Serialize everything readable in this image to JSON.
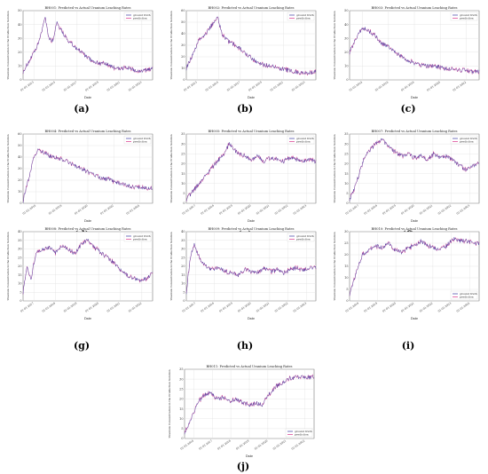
{
  "chart_data": [
    {
      "id": "a",
      "label": "(a)",
      "type": "line",
      "title": "BH001: Predicted vs Actual Uranium Leaching Rates",
      "xlabel": "Date",
      "ylabel": "Uranium Concentration in the Production Solution",
      "legend": [
        "ground truth",
        "prediction"
      ],
      "legend_position": "top-right",
      "grid": true,
      "ylim": [
        0,
        50
      ],
      "yticks": [
        "0",
        "10",
        "20",
        "30",
        "40",
        "50"
      ],
      "xticks": [
        "01-01-2013",
        "01-01-2015",
        "01-01-2017",
        "01-01-2019",
        "01-01-2021",
        "01-01-2023"
      ],
      "profile": [
        [
          0,
          6
        ],
        [
          0.05,
          14
        ],
        [
          0.1,
          22
        ],
        [
          0.14,
          33
        ],
        [
          0.17,
          46
        ],
        [
          0.2,
          30
        ],
        [
          0.23,
          28
        ],
        [
          0.26,
          42
        ],
        [
          0.3,
          35
        ],
        [
          0.35,
          28
        ],
        [
          0.4,
          24
        ],
        [
          0.45,
          20
        ],
        [
          0.5,
          16
        ],
        [
          0.55,
          13
        ],
        [
          0.6,
          12
        ],
        [
          0.65,
          11
        ],
        [
          0.7,
          9
        ],
        [
          0.75,
          8
        ],
        [
          0.8,
          9
        ],
        [
          0.85,
          7
        ],
        [
          0.9,
          6
        ],
        [
          0.95,
          7
        ],
        [
          1,
          8
        ]
      ]
    },
    {
      "id": "b",
      "label": "(b)",
      "type": "line",
      "title": "BH002: Predicted vs Actual Uranium Leaching Rates",
      "xlabel": "Date",
      "ylabel": "Uranium Concentration in the Production Solution",
      "legend": [
        "ground truth",
        "prediction"
      ],
      "legend_position": "top-right",
      "grid": true,
      "ylim": [
        0,
        60
      ],
      "yticks": [
        "0",
        "10",
        "20",
        "30",
        "40",
        "50",
        "60"
      ],
      "xticks": [
        "01-01-2013",
        "01-01-2015",
        "01-01-2017",
        "01-01-2019",
        "01-01-2021",
        "01-01-2023"
      ],
      "profile": [
        [
          0,
          10
        ],
        [
          0.05,
          22
        ],
        [
          0.1,
          35
        ],
        [
          0.15,
          40
        ],
        [
          0.2,
          48
        ],
        [
          0.24,
          55
        ],
        [
          0.28,
          38
        ],
        [
          0.32,
          34
        ],
        [
          0.38,
          30
        ],
        [
          0.45,
          24
        ],
        [
          0.5,
          19
        ],
        [
          0.55,
          15
        ],
        [
          0.6,
          13
        ],
        [
          0.65,
          12
        ],
        [
          0.7,
          11
        ],
        [
          0.75,
          9
        ],
        [
          0.8,
          8
        ],
        [
          0.85,
          7
        ],
        [
          0.9,
          6
        ],
        [
          0.95,
          6
        ],
        [
          1,
          7
        ]
      ]
    },
    {
      "id": "c",
      "label": "(c)",
      "type": "line",
      "title": "BH003: Predicted vs Actual Uranium Leaching Rates",
      "xlabel": "Date",
      "ylabel": "Uranium Concentration in the Production Solution",
      "legend": [
        "ground truth",
        "prediction"
      ],
      "legend_position": "top-right",
      "grid": true,
      "ylim": [
        0,
        50
      ],
      "yticks": [
        "0",
        "10",
        "20",
        "30",
        "40",
        "50"
      ],
      "xticks": [
        "01-01-2014",
        "01-01-2016",
        "01-01-2018",
        "01-01-2020",
        "01-01-2022"
      ],
      "profile": [
        [
          0,
          20
        ],
        [
          0.05,
          30
        ],
        [
          0.1,
          38
        ],
        [
          0.15,
          35
        ],
        [
          0.2,
          32
        ],
        [
          0.25,
          26
        ],
        [
          0.3,
          24
        ],
        [
          0.35,
          20
        ],
        [
          0.4,
          17
        ],
        [
          0.45,
          14
        ],
        [
          0.5,
          12
        ],
        [
          0.55,
          11
        ],
        [
          0.6,
          10
        ],
        [
          0.65,
          10
        ],
        [
          0.7,
          9
        ],
        [
          0.75,
          8
        ],
        [
          0.8,
          8
        ],
        [
          0.85,
          7
        ],
        [
          0.9,
          7
        ],
        [
          0.95,
          6
        ],
        [
          1,
          6
        ]
      ]
    },
    {
      "id": "d",
      "label": "(d)",
      "type": "line",
      "title": "BH004: Predicted vs Actual Uranium Leaching Rates",
      "xlabel": "Date",
      "ylabel": "Uranium Concentration in the Production Solution",
      "legend": [
        "ground truth",
        "prediction"
      ],
      "legend_position": "top-right",
      "grid": true,
      "ylim": [
        0,
        60
      ],
      "yticks": [
        "0",
        "10",
        "20",
        "30",
        "40",
        "50",
        "60"
      ],
      "xticks": [
        "01-01-2016",
        "01-01-2018",
        "01-01-2020",
        "01-01-2022",
        "01-01-2024"
      ],
      "profile": [
        [
          0,
          2
        ],
        [
          0.04,
          20
        ],
        [
          0.08,
          38
        ],
        [
          0.12,
          47
        ],
        [
          0.16,
          44
        ],
        [
          0.22,
          40
        ],
        [
          0.3,
          38
        ],
        [
          0.38,
          34
        ],
        [
          0.45,
          30
        ],
        [
          0.52,
          26
        ],
        [
          0.6,
          22
        ],
        [
          0.68,
          20
        ],
        [
          0.75,
          17
        ],
        [
          0.82,
          15
        ],
        [
          0.88,
          14
        ],
        [
          0.94,
          13
        ],
        [
          1,
          13
        ]
      ]
    },
    {
      "id": "e",
      "label": "(e)",
      "type": "line",
      "title": "BH005: Predicted vs Actual Uranium Leaching Rates",
      "xlabel": "Date",
      "ylabel": "Uranium Concentration in the Production Solution",
      "legend": [
        "ground truth",
        "prediction"
      ],
      "legend_position": "top-right",
      "grid": true,
      "ylim": [
        0,
        35
      ],
      "yticks": [
        "0",
        "5",
        "10",
        "15",
        "20",
        "25",
        "30",
        "35"
      ],
      "xticks": [
        "01-01-2017",
        "01-01-2018",
        "01-01-2019",
        "01-01-2020",
        "01-01-2021",
        "01-01-2022",
        "01-01-2023"
      ],
      "profile": [
        [
          0,
          2
        ],
        [
          0.05,
          6
        ],
        [
          0.1,
          10
        ],
        [
          0.15,
          14
        ],
        [
          0.2,
          18
        ],
        [
          0.25,
          22
        ],
        [
          0.3,
          26
        ],
        [
          0.33,
          30
        ],
        [
          0.36,
          28
        ],
        [
          0.4,
          25
        ],
        [
          0.45,
          24
        ],
        [
          0.5,
          22
        ],
        [
          0.55,
          24
        ],
        [
          0.6,
          21
        ],
        [
          0.65,
          23
        ],
        [
          0.7,
          22
        ],
        [
          0.75,
          21
        ],
        [
          0.8,
          23
        ],
        [
          0.85,
          22
        ],
        [
          0.9,
          21
        ],
        [
          0.95,
          22
        ],
        [
          1,
          21
        ]
      ]
    },
    {
      "id": "f",
      "label": "(f)",
      "type": "line",
      "title": "BH007: Predicted vs Actual Uranium Leaching Rates",
      "xlabel": "Date",
      "ylabel": "Uranium Concentration in the Production Solution",
      "legend": [
        "ground truth",
        "prediction"
      ],
      "legend_position": "top-right",
      "grid": true,
      "ylim": [
        0,
        35
      ],
      "yticks": [
        "0",
        "5",
        "10",
        "15",
        "20",
        "25",
        "30",
        "35"
      ],
      "xticks": [
        "01-01-2017",
        "01-01-2018",
        "01-01-2019",
        "01-01-2020",
        "01-01-2021",
        "01-01-2022",
        "01-01-2023"
      ],
      "profile": [
        [
          0,
          2
        ],
        [
          0.04,
          8
        ],
        [
          0.08,
          16
        ],
        [
          0.12,
          24
        ],
        [
          0.16,
          27
        ],
        [
          0.2,
          30
        ],
        [
          0.25,
          32
        ],
        [
          0.3,
          29
        ],
        [
          0.35,
          26
        ],
        [
          0.4,
          24
        ],
        [
          0.45,
          25
        ],
        [
          0.5,
          23
        ],
        [
          0.55,
          24
        ],
        [
          0.6,
          22
        ],
        [
          0.65,
          25
        ],
        [
          0.7,
          23
        ],
        [
          0.75,
          24
        ],
        [
          0.8,
          22
        ],
        [
          0.85,
          19
        ],
        [
          0.9,
          17
        ],
        [
          0.95,
          19
        ],
        [
          1,
          20
        ]
      ]
    },
    {
      "id": "g",
      "label": "(g)",
      "type": "line",
      "title": "BH008: Predicted vs Actual Uranium Leaching Rates",
      "xlabel": "Date",
      "ylabel": "Uranium Concentration in the Production Solution",
      "legend": [
        "ground truth",
        "prediction"
      ],
      "legend_position": "top-right",
      "grid": true,
      "ylim": [
        0,
        40
      ],
      "yticks": [
        "0",
        "5",
        "10",
        "15",
        "20",
        "25",
        "30",
        "35",
        "40"
      ],
      "xticks": [
        "01-01-2017",
        "01-01-2018",
        "01-01-2019",
        "01-01-2020",
        "01-01-2021",
        "01-01-2022"
      ],
      "profile": [
        [
          0,
          5
        ],
        [
          0.03,
          20
        ],
        [
          0.06,
          12
        ],
        [
          0.1,
          28
        ],
        [
          0.15,
          30
        ],
        [
          0.2,
          31
        ],
        [
          0.25,
          28
        ],
        [
          0.3,
          32
        ],
        [
          0.35,
          30
        ],
        [
          0.4,
          27
        ],
        [
          0.45,
          33
        ],
        [
          0.5,
          35
        ],
        [
          0.55,
          31
        ],
        [
          0.6,
          28
        ],
        [
          0.65,
          25
        ],
        [
          0.7,
          22
        ],
        [
          0.75,
          18
        ],
        [
          0.8,
          15
        ],
        [
          0.85,
          13
        ],
        [
          0.9,
          12
        ],
        [
          0.95,
          13
        ],
        [
          1,
          16
        ]
      ]
    },
    {
      "id": "h",
      "label": "(h)",
      "type": "line",
      "title": "BH009: Predicted vs Actual Uranium Leaching Rates",
      "xlabel": "Date",
      "ylabel": "Uranium Concentration in the Production Solution",
      "legend": [
        "ground truth",
        "prediction"
      ],
      "legend_position": "top-right",
      "grid": true,
      "ylim": [
        0,
        40
      ],
      "yticks": [
        "0",
        "5",
        "10",
        "15",
        "20",
        "25",
        "30",
        "35",
        "40"
      ],
      "xticks": [
        "01-01-2017",
        "01-01-2018",
        "01-01-2019",
        "01-01-2020",
        "01-01-2021",
        "01-01-2022",
        "01-01-2023"
      ],
      "profile": [
        [
          0,
          5
        ],
        [
          0.03,
          25
        ],
        [
          0.06,
          33
        ],
        [
          0.1,
          25
        ],
        [
          0.15,
          20
        ],
        [
          0.2,
          18
        ],
        [
          0.25,
          19
        ],
        [
          0.3,
          17
        ],
        [
          0.35,
          16
        ],
        [
          0.4,
          15
        ],
        [
          0.45,
          18
        ],
        [
          0.5,
          17
        ],
        [
          0.55,
          16
        ],
        [
          0.6,
          19
        ],
        [
          0.65,
          17
        ],
        [
          0.7,
          18
        ],
        [
          0.75,
          16
        ],
        [
          0.8,
          18
        ],
        [
          0.85,
          19
        ],
        [
          0.9,
          18
        ],
        [
          0.95,
          19
        ],
        [
          1,
          19
        ]
      ]
    },
    {
      "id": "i",
      "label": "(i)",
      "type": "line",
      "title": "BH010: Predicted vs Actual Uranium Leaching Rates",
      "xlabel": "Date",
      "ylabel": "Uranium Concentration in the Production Solution",
      "legend": [
        "ground truth",
        "prediction"
      ],
      "legend_position": "bottom-right",
      "grid": true,
      "ylim": [
        0,
        30
      ],
      "yticks": [
        "0",
        "5",
        "10",
        "15",
        "20",
        "25",
        "30"
      ],
      "xticks": [
        "01-01-2018",
        "01-01-2019",
        "01-01-2020",
        "01-01-2021",
        "01-01-2022",
        "01-01-2023",
        "01-01-2024"
      ],
      "profile": [
        [
          0,
          3
        ],
        [
          0.03,
          8
        ],
        [
          0.06,
          14
        ],
        [
          0.1,
          20
        ],
        [
          0.15,
          22
        ],
        [
          0.2,
          24
        ],
        [
          0.25,
          23
        ],
        [
          0.3,
          25
        ],
        [
          0.35,
          22
        ],
        [
          0.4,
          21
        ],
        [
          0.45,
          23
        ],
        [
          0.5,
          24
        ],
        [
          0.55,
          26
        ],
        [
          0.6,
          24
        ],
        [
          0.65,
          23
        ],
        [
          0.7,
          22
        ],
        [
          0.75,
          24
        ],
        [
          0.8,
          27
        ],
        [
          0.85,
          26
        ],
        [
          0.9,
          26
        ],
        [
          0.95,
          25
        ],
        [
          1,
          25
        ]
      ]
    },
    {
      "id": "j",
      "label": "(j)",
      "type": "line",
      "title": "BH011: Predicted vs Actual Uranium Leaching Rates",
      "xlabel": "Date",
      "ylabel": "Uranium Concentration in the Production Solution",
      "legend": [
        "ground truth",
        "prediction"
      ],
      "legend_position": "bottom-right",
      "grid": true,
      "ylim": [
        0,
        35
      ],
      "yticks": [
        "0",
        "5",
        "10",
        "15",
        "20",
        "25",
        "30",
        "35"
      ],
      "xticks": [
        "01-01-2016",
        "01-01-2017",
        "01-01-2018",
        "01-01-2019",
        "01-01-2020",
        "01-01-2021",
        "01-01-2022"
      ],
      "profile": [
        [
          0,
          3
        ],
        [
          0.05,
          10
        ],
        [
          0.1,
          18
        ],
        [
          0.15,
          22
        ],
        [
          0.2,
          23
        ],
        [
          0.25,
          20
        ],
        [
          0.3,
          21
        ],
        [
          0.35,
          19
        ],
        [
          0.4,
          20
        ],
        [
          0.45,
          18
        ],
        [
          0.5,
          17
        ],
        [
          0.55,
          18
        ],
        [
          0.6,
          17
        ],
        [
          0.65,
          22
        ],
        [
          0.7,
          26
        ],
        [
          0.75,
          28
        ],
        [
          0.8,
          30
        ],
        [
          0.85,
          31
        ],
        [
          0.9,
          31
        ],
        [
          0.95,
          31
        ],
        [
          1,
          31
        ]
      ]
    }
  ],
  "colors": {
    "ground_truth": "#3a3aa0",
    "prediction": "#d9328a",
    "grid": "#dcdcdc",
    "axis": "#333333"
  }
}
